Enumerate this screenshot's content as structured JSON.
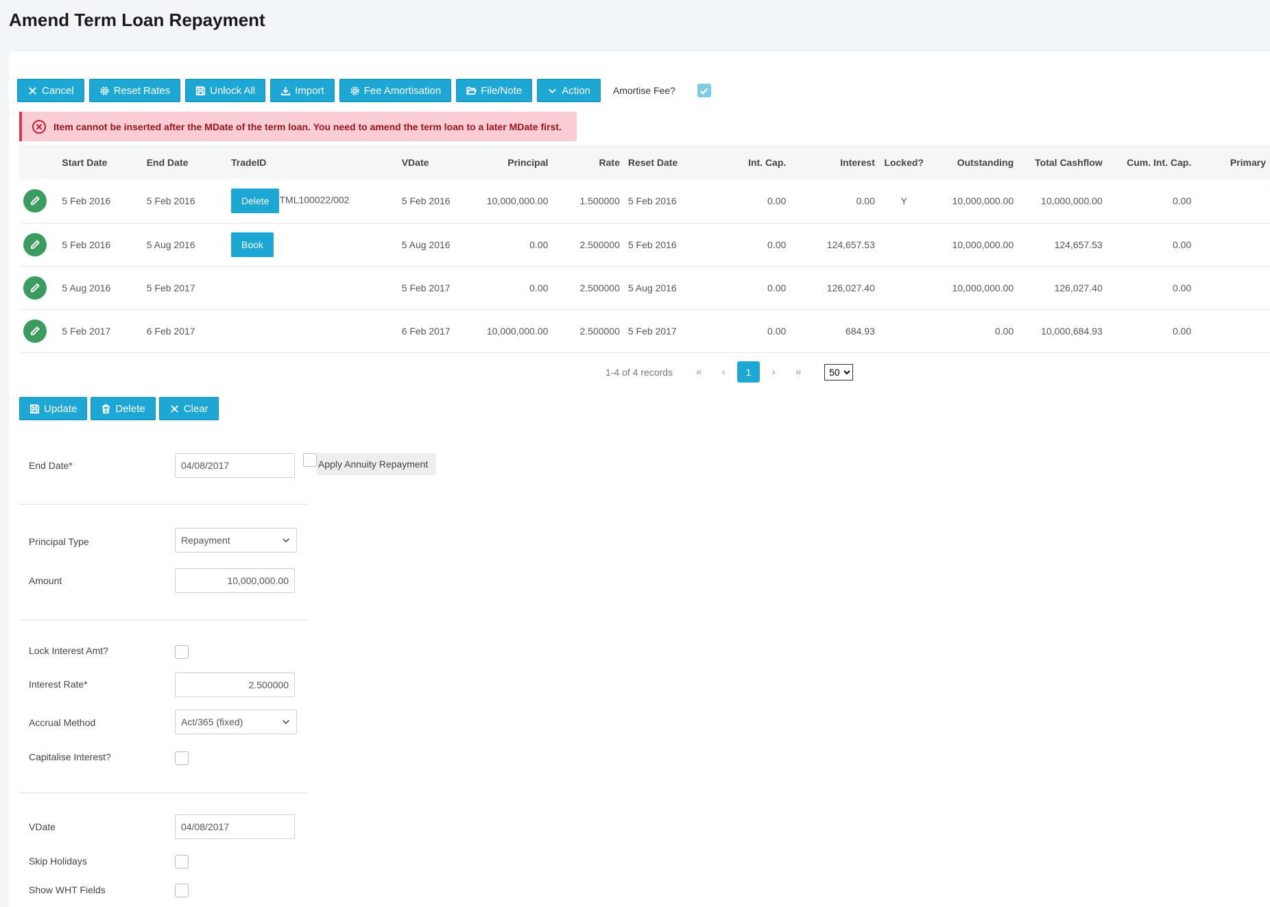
{
  "page": {
    "title": "Amend Term Loan Repayment"
  },
  "toolbar": {
    "buttons": [
      {
        "label": "Cancel",
        "icon": "close-icon"
      },
      {
        "label": "Reset Rates",
        "icon": "gear-icon"
      },
      {
        "label": "Unlock All",
        "icon": "save-icon"
      },
      {
        "label": "Import",
        "icon": "download-icon"
      },
      {
        "label": "Fee Amortisation",
        "icon": "gear-icon"
      },
      {
        "label": "File/Note",
        "icon": "folder-open-icon"
      },
      {
        "label": "Action",
        "icon": "chevron-down-icon"
      }
    ],
    "amortise_fee_label": "Amortise Fee?",
    "amortise_fee_checked": true
  },
  "alert": {
    "message": "Item cannot be inserted after the MDate of the term loan. You need to amend the term loan to a later MDate first."
  },
  "table": {
    "columns": [
      "Start Date",
      "End Date",
      "TradeID",
      "VDate",
      "Principal",
      "Rate",
      "Reset Date",
      "Int. Cap.",
      "Interest",
      "Locked?",
      "Outstanding",
      "Total Cashflow",
      "Cum. Int. Cap.",
      "Primary"
    ],
    "rows": [
      {
        "start": "5 Feb 2016",
        "end": "5 Feb 2016",
        "action": "Delete",
        "trade_id": "TML100022/002",
        "vdate": "5 Feb 2016",
        "principal": "10,000,000.00",
        "rate": "1.500000",
        "reset": "5 Feb 2016",
        "int_cap": "0.00",
        "interest": "0.00",
        "locked": "Y",
        "outstanding": "10,000,000.00",
        "total": "10,000,000.00",
        "cum": "0.00",
        "primary": ""
      },
      {
        "start": "5 Feb 2016",
        "end": "5 Aug 2016",
        "action": "Book",
        "trade_id": "",
        "vdate": "5 Aug 2016",
        "principal": "0.00",
        "rate": "2.500000",
        "reset": "5 Feb 2016",
        "int_cap": "0.00",
        "interest": "124,657.53",
        "locked": "",
        "outstanding": "10,000,000.00",
        "total": "124,657.53",
        "cum": "0.00",
        "primary": ""
      },
      {
        "start": "5 Aug 2016",
        "end": "5 Feb 2017",
        "action": "",
        "trade_id": "",
        "vdate": "5 Feb 2017",
        "principal": "0.00",
        "rate": "2.500000",
        "reset": "5 Aug 2016",
        "int_cap": "0.00",
        "interest": "126,027.40",
        "locked": "",
        "outstanding": "10,000,000.00",
        "total": "126,027.40",
        "cum": "0.00",
        "primary": ""
      },
      {
        "start": "5 Feb 2017",
        "end": "6 Feb 2017",
        "action": "",
        "trade_id": "",
        "vdate": "6 Feb 2017",
        "principal": "10,000,000.00",
        "rate": "2.500000",
        "reset": "5 Feb 2017",
        "int_cap": "0.00",
        "interest": "684.93",
        "locked": "",
        "outstanding": "0.00",
        "total": "10,000,684.93",
        "cum": "0.00",
        "primary": ""
      }
    ]
  },
  "pager": {
    "info": "1-4 of 4 records",
    "current_page": "1",
    "page_size": "50",
    "first": "«",
    "prev": "‹",
    "next": "›",
    "last": "»"
  },
  "form_toolbar": {
    "update": "Update",
    "delete": "Delete",
    "clear": "Clear"
  },
  "form": {
    "end_date_label": "End Date*",
    "end_date_value": "04/08/2017",
    "annuity_label": "Apply Annuity Repayment",
    "principal_type_label": "Principal Type",
    "principal_type_value": "Repayment",
    "amount_label": "Amount",
    "amount_value": "10,000,000.00",
    "lock_interest_label": "Lock Interest Amt?",
    "interest_rate_label": "Interest Rate*",
    "interest_rate_value": "2.500000",
    "accrual_method_label": "Accrual Method",
    "accrual_method_value": "Act/365 (fixed)",
    "capitalise_label": "Capitalise Interest?",
    "vdate_label": "VDate",
    "vdate_value": "04/08/2017",
    "skip_holidays_label": "Skip Holidays",
    "show_wht_label": "Show WHT Fields"
  },
  "colors": {
    "primary": "#1da7d4",
    "success": "#3a9c5f",
    "danger_bg": "#f9cdd3",
    "danger_text": "#9b1320"
  }
}
